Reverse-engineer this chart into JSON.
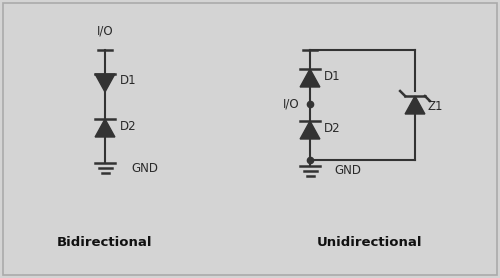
{
  "bg_color": "#d4d4d4",
  "border_color": "#aaaaaa",
  "line_color": "#333333",
  "text_color": "#2a2a2a",
  "label_color": "#8b4513",
  "title_color": "#111111",
  "fig_width": 5.0,
  "fig_height": 2.78,
  "dpi": 100,
  "bidirectional_label": "Bidirectional",
  "unidirectional_label": "Unidirectional",
  "io_label": "I/O",
  "gnd_label": "GND",
  "d1_label": "D1",
  "d2_label": "D2",
  "z1_label": "Z1"
}
